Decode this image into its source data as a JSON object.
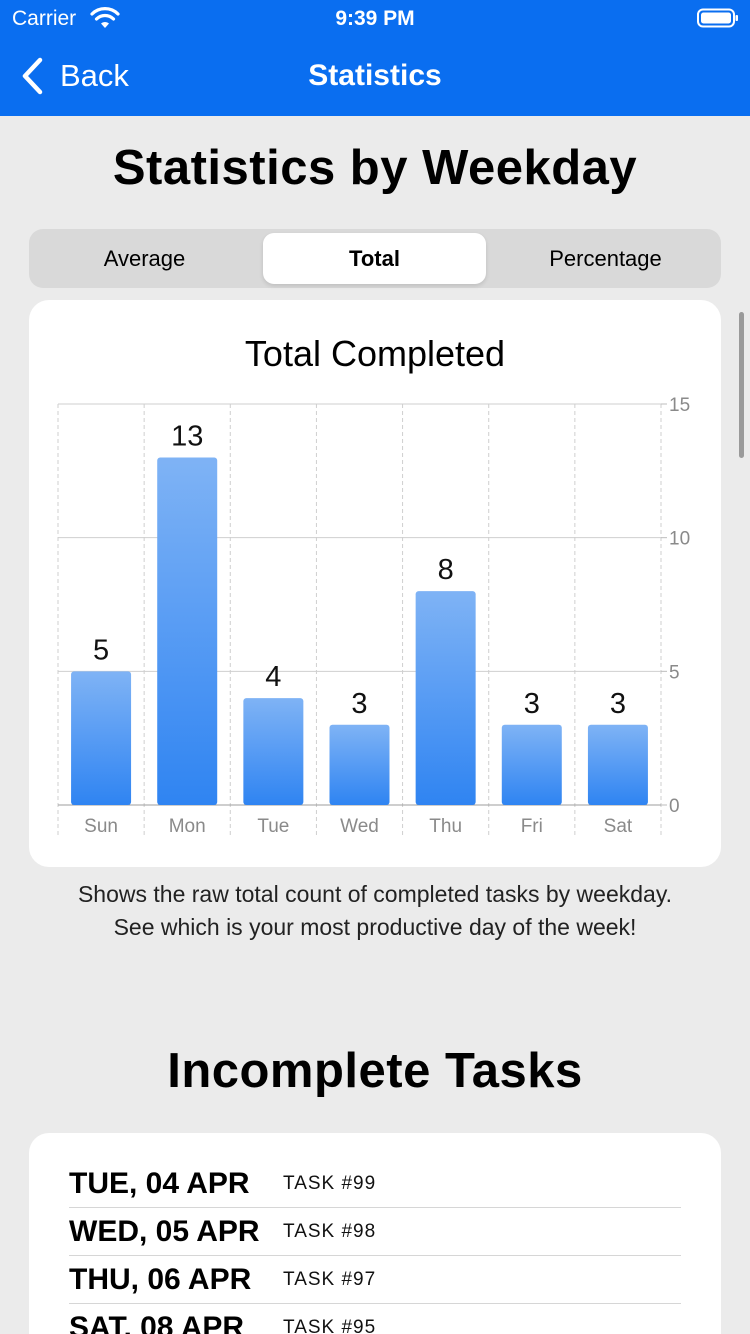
{
  "status_bar": {
    "carrier": "Carrier",
    "time": "9:39 PM"
  },
  "nav": {
    "back_label": "Back",
    "title": "Statistics"
  },
  "heading": "Statistics by Weekday",
  "segments": [
    {
      "label": "Average",
      "selected": false
    },
    {
      "label": "Total",
      "selected": true
    },
    {
      "label": "Percentage",
      "selected": false
    }
  ],
  "chart_data": {
    "type": "bar",
    "title": "Total Completed",
    "categories": [
      "Sun",
      "Mon",
      "Tue",
      "Wed",
      "Thu",
      "Fri",
      "Sat"
    ],
    "values": [
      5,
      13,
      4,
      3,
      8,
      3,
      3
    ],
    "ylim": [
      0,
      15
    ],
    "yticks": [
      0,
      5,
      10,
      15
    ],
    "xlabel": "",
    "ylabel": "",
    "grid": true,
    "bar_color": "#2f84f2"
  },
  "description": "Shows the raw total count of completed tasks by weekday. See which is your most productive day of the week!",
  "incomplete_heading": "Incomplete Tasks",
  "tasks": [
    {
      "date": "TUE, 04 APR",
      "name": "TASK #99"
    },
    {
      "date": "WED, 05 APR",
      "name": "TASK #98"
    },
    {
      "date": "THU, 06 APR",
      "name": "TASK #97"
    },
    {
      "date": "SAT, 08 APR",
      "name": "TASK #95"
    }
  ],
  "colors": {
    "accent": "#0a6ef0",
    "background": "#ebebeb"
  }
}
